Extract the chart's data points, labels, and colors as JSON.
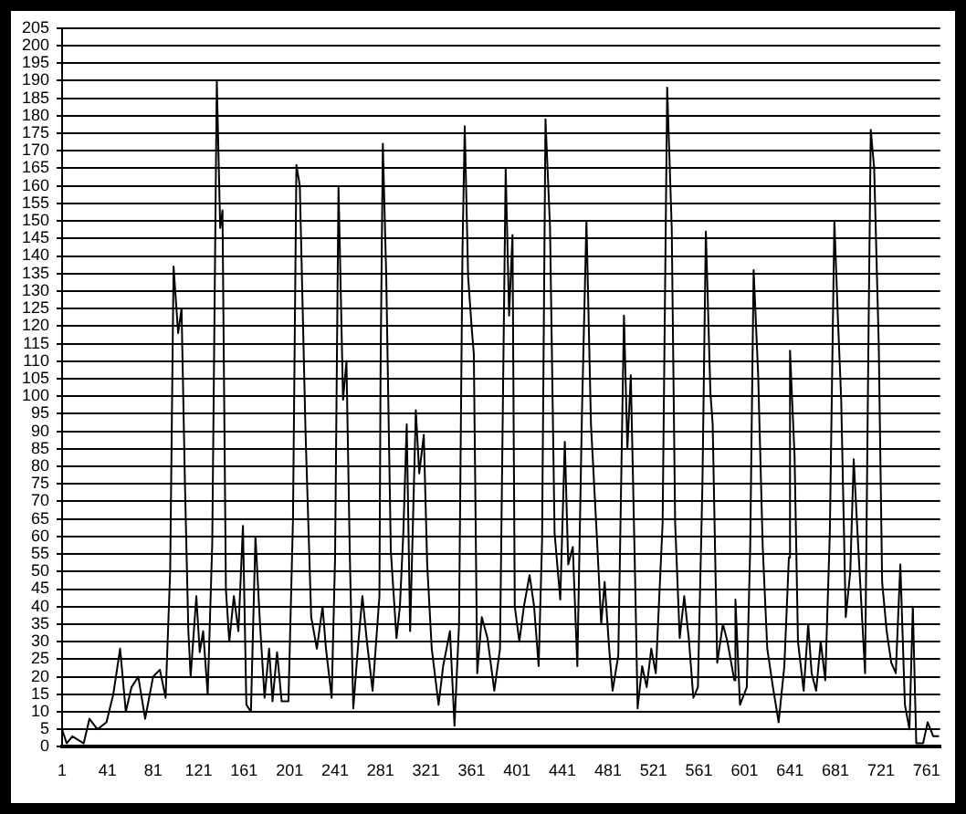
{
  "chart_data": {
    "type": "line",
    "x": [
      1,
      5,
      10,
      20,
      25,
      32,
      40,
      46,
      52,
      57,
      62,
      68,
      74,
      81,
      87,
      92,
      96,
      99,
      103,
      106,
      109,
      112,
      114,
      119,
      122,
      125,
      129,
      133,
      137,
      140,
      142,
      145,
      148,
      152,
      156,
      160,
      163,
      167,
      171,
      175,
      179,
      183,
      186,
      190,
      194,
      200,
      204,
      207,
      210,
      215,
      220,
      225,
      230,
      233,
      238,
      241,
      244,
      248,
      251,
      254,
      257,
      261,
      265,
      269,
      274,
      280,
      281,
      283,
      286,
      290,
      295,
      298,
      301,
      304,
      307,
      312,
      315,
      319,
      322,
      326,
      332,
      336,
      342,
      346,
      350,
      353,
      355,
      358,
      361,
      363,
      366,
      370,
      375,
      381,
      386,
      391,
      394,
      397,
      399,
      403,
      407,
      412,
      416,
      420,
      423,
      426,
      430,
      434,
      439,
      443,
      446,
      450,
      454,
      458,
      462,
      466,
      471,
      475,
      478,
      482,
      485,
      490,
      495,
      498,
      501,
      505,
      507,
      511,
      515,
      519,
      523,
      529,
      533,
      537,
      540,
      544,
      548,
      552,
      556,
      560,
      564,
      567,
      571,
      573,
      577,
      582,
      586,
      592,
      593,
      597,
      603,
      606,
      609,
      613,
      617,
      621,
      626,
      631,
      636,
      640,
      641,
      645,
      648,
      653,
      657,
      660,
      664,
      668,
      672,
      676,
      680,
      683,
      686,
      690,
      694,
      697,
      701,
      707,
      710,
      712,
      715,
      719,
      722,
      726,
      730,
      734,
      738,
      742,
      746,
      749,
      752,
      758,
      762,
      767,
      772
    ],
    "series": [
      {
        "color": "#000000",
        "values": [
          5,
          1,
          3,
          1,
          8,
          5,
          7,
          15,
          28,
          10,
          17,
          20,
          8,
          20,
          22,
          14,
          50,
          137,
          118,
          125,
          75,
          33,
          20,
          43,
          27,
          33,
          15,
          58,
          190,
          148,
          153,
          45,
          30,
          43,
          33,
          63,
          12,
          10,
          60,
          35,
          14,
          28,
          13,
          27,
          13,
          13,
          65,
          166,
          160,
          90,
          37,
          28,
          40,
          28,
          14,
          54,
          160,
          99,
          110,
          54,
          11,
          28,
          43,
          30,
          16,
          43,
          108,
          172,
          134,
          56,
          31,
          40,
          61,
          92,
          33,
          96,
          78,
          89,
          52,
          28,
          12,
          23,
          33,
          6,
          35,
          141,
          177,
          134,
          120,
          112,
          21,
          37,
          31,
          16,
          28,
          165,
          123,
          146,
          40,
          30,
          40,
          49,
          40,
          23,
          59,
          179,
          148,
          61,
          42,
          87,
          52,
          57,
          23,
          94,
          150,
          92,
          61,
          35,
          47,
          28,
          16,
          26,
          123,
          85,
          106,
          45,
          11,
          23,
          17,
          28,
          21,
          64,
          188,
          148,
          64,
          31,
          43,
          31,
          14,
          17,
          75,
          147,
          101,
          92,
          24,
          35,
          30,
          19,
          42,
          12,
          17,
          57,
          136,
          106,
          57,
          28,
          17,
          7,
          23,
          54,
          113,
          83,
          30,
          16,
          35,
          21,
          16,
          30,
          19,
          61,
          150,
          123,
          99,
          37,
          50,
          82,
          57,
          21,
          117,
          176,
          165,
          115,
          47,
          33,
          24,
          21,
          52,
          12,
          5,
          40,
          1,
          1,
          7,
          3,
          3
        ]
      }
    ],
    "xlim": [
      1,
      773
    ],
    "xticks": [
      1,
      41,
      81,
      121,
      161,
      201,
      241,
      281,
      321,
      361,
      401,
      441,
      481,
      521,
      561,
      601,
      641,
      681,
      721,
      761
    ],
    "ylim": [
      0,
      205
    ],
    "yticks": [
      0,
      5,
      10,
      15,
      20,
      25,
      30,
      35,
      40,
      45,
      50,
      55,
      60,
      65,
      70,
      75,
      80,
      85,
      90,
      95,
      100,
      105,
      110,
      115,
      120,
      125,
      130,
      135,
      140,
      145,
      150,
      155,
      160,
      165,
      170,
      175,
      180,
      185,
      190,
      195,
      200,
      205
    ],
    "grid": "y",
    "marker": "none",
    "line_style": "solid",
    "legend": false
  }
}
